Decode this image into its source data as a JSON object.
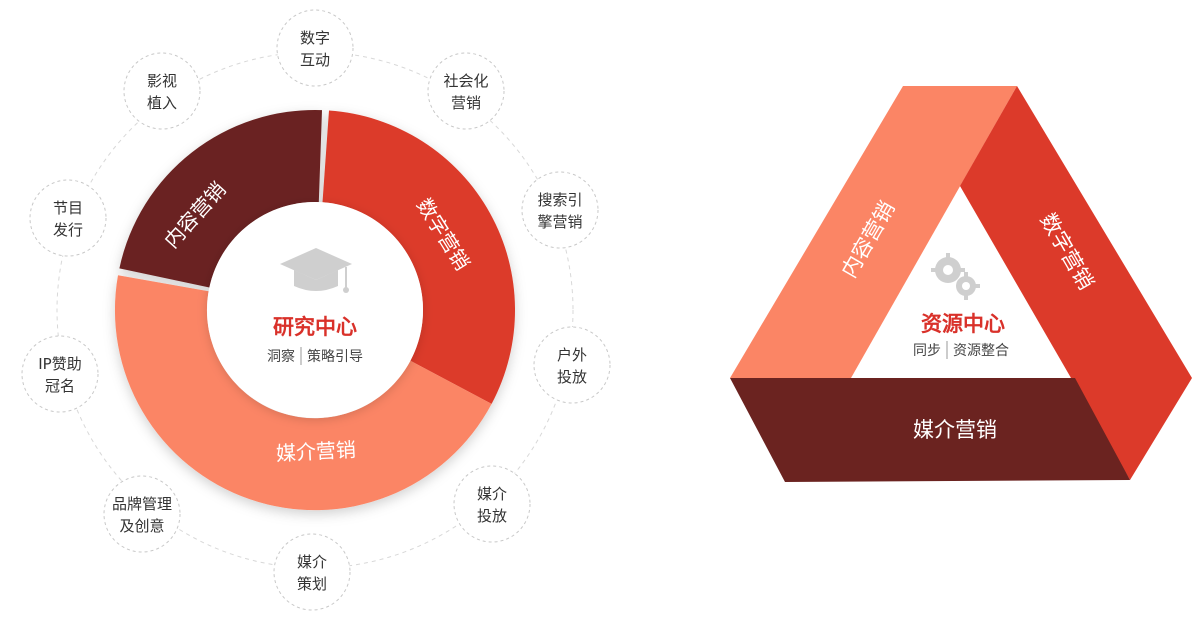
{
  "colors": {
    "content": "#6b2320",
    "digital": "#dc3a2a",
    "media": "#fb8565",
    "accent": "#d9312a",
    "icon": "#cfcfcf"
  },
  "left": {
    "center": {
      "title": "研究中心",
      "sub_a": "洞察",
      "sub_b": "策略引导",
      "icon": "graduation-cap-icon"
    },
    "segments": {
      "content": "内容营销",
      "digital": "数字营销",
      "media": "媒介营销"
    },
    "satellites": [
      {
        "line1": "数字",
        "line2": "互动"
      },
      {
        "line1": "社会化",
        "line2": "营销"
      },
      {
        "line1": "搜索引",
        "line2": "擎营销"
      },
      {
        "line1": "户外",
        "line2": "投放"
      },
      {
        "line1": "媒介",
        "line2": "投放"
      },
      {
        "line1": "媒介",
        "line2": "策划"
      },
      {
        "line1": "品牌管理",
        "line2": "及创意"
      },
      {
        "line1": "IP赞助",
        "line2": "冠名"
      },
      {
        "line1": "节目",
        "line2": "发行"
      },
      {
        "line1": "影视",
        "line2": "植入"
      }
    ]
  },
  "right": {
    "center": {
      "title": "资源中心",
      "sub_a": "同步",
      "sub_b": "资源整合",
      "icon": "gears-icon"
    },
    "sides": {
      "content": "内容营销",
      "digital": "数字营销",
      "media": "媒介营销"
    }
  }
}
